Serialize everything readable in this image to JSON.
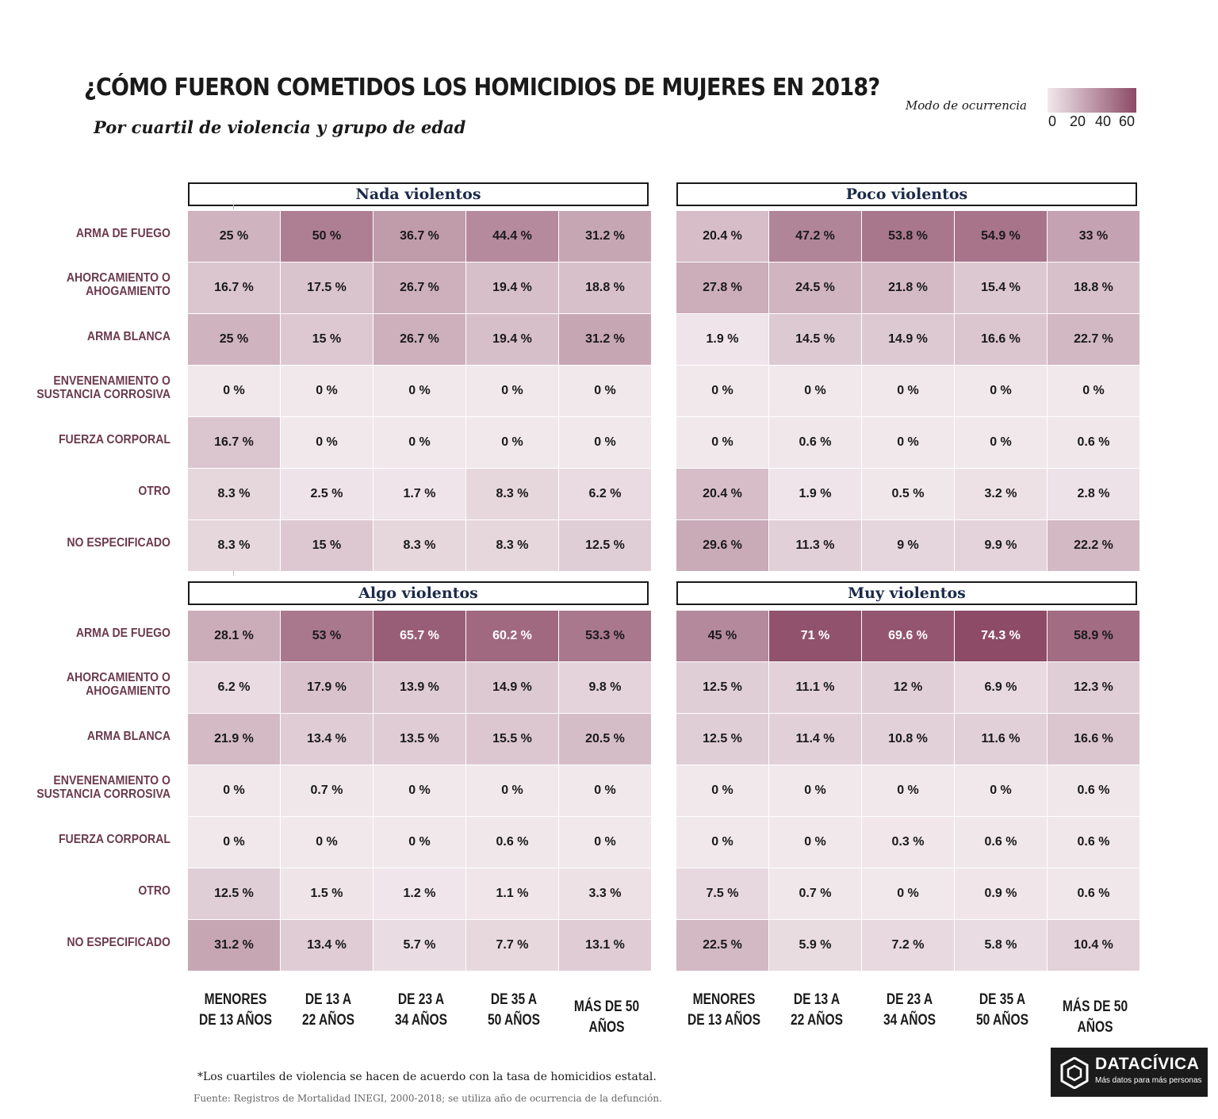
{
  "title": "¿CÓMO FUERON COMETIDOS LOS HOMICIDIOS DE MUJERES EN 2018?",
  "subtitle": "Por cuartil de violencia y grupo de edad",
  "legend": {
    "title": "Modo de ocurrencia",
    "ticks": [
      "0",
      "20",
      "40",
      "60"
    ],
    "min": 0,
    "max": 75,
    "color_low": "#f1e8ec",
    "color_high": "#8c4a66"
  },
  "footnote": "*Los cuartiles de violencia se hacen de acuerdo con la tasa de homicidios estatal.",
  "source": "Fuente: Registros de Mortalidad INEGI, 2000-2018; se utiliza año de ocurrencia de la defunción.",
  "brand": {
    "name": "DATACÍVICA",
    "tagline": "Más datos para más personas"
  },
  "chart_data": {
    "type": "heatmap",
    "rows": [
      "ARMA DE FUEGO",
      "AHORCAMIENTO O\nAHOGAMIENTO",
      "ARMA BLANCA",
      "ENVENENAMIENTO O\nSUSTANCIA CORROSIVA",
      "FUERZA CORPORAL",
      "OTRO",
      "NO ESPECIFICADO"
    ],
    "columns": [
      "MENORES\nDE 13 AÑOS",
      "DE 13 A\n22 AÑOS",
      "DE 23 A\n34 AÑOS",
      "DE 35 A\n50 AÑOS",
      "MÁS DE 50 AÑOS"
    ],
    "unit": "%",
    "facets": [
      {
        "name": "Nada violentos",
        "values": [
          [
            25,
            50,
            36.7,
            44.4,
            31.2
          ],
          [
            16.7,
            17.5,
            26.7,
            19.4,
            18.8
          ],
          [
            25,
            15,
            26.7,
            19.4,
            31.2
          ],
          [
            0,
            0,
            0,
            0,
            0
          ],
          [
            16.7,
            0,
            0,
            0,
            0
          ],
          [
            8.3,
            2.5,
            1.7,
            8.3,
            6.2
          ],
          [
            8.3,
            15,
            8.3,
            8.3,
            12.5
          ]
        ]
      },
      {
        "name": "Poco violentos",
        "values": [
          [
            20.4,
            47.2,
            53.8,
            54.9,
            33
          ],
          [
            27.8,
            24.5,
            21.8,
            15.4,
            18.8
          ],
          [
            1.9,
            14.5,
            14.9,
            16.6,
            22.7
          ],
          [
            0,
            0,
            0,
            0,
            0
          ],
          [
            0,
            0.6,
            0,
            0,
            0.6
          ],
          [
            20.4,
            1.9,
            0.5,
            3.2,
            2.8
          ],
          [
            29.6,
            11.3,
            9,
            9.9,
            22.2
          ]
        ]
      },
      {
        "name": "Algo violentos",
        "values": [
          [
            28.1,
            53,
            65.7,
            60.2,
            53.3
          ],
          [
            6.2,
            17.9,
            13.9,
            14.9,
            9.8
          ],
          [
            21.9,
            13.4,
            13.5,
            15.5,
            20.5
          ],
          [
            0,
            0.7,
            0,
            0,
            0
          ],
          [
            0,
            0,
            0,
            0.6,
            0
          ],
          [
            12.5,
            1.5,
            1.2,
            1.1,
            3.3
          ],
          [
            31.2,
            13.4,
            5.7,
            7.7,
            13.1
          ]
        ]
      },
      {
        "name": "Muy violentos",
        "values": [
          [
            45,
            71,
            69.6,
            74.3,
            58.9
          ],
          [
            12.5,
            11.1,
            12,
            6.9,
            12.3
          ],
          [
            12.5,
            11.4,
            10.8,
            11.6,
            16.6
          ],
          [
            0,
            0,
            0,
            0,
            0.6
          ],
          [
            0,
            0,
            0.3,
            0.6,
            0.6
          ],
          [
            7.5,
            0.7,
            0,
            0.9,
            0.6
          ],
          [
            22.5,
            5.9,
            7.2,
            5.8,
            10.4
          ]
        ]
      }
    ]
  }
}
